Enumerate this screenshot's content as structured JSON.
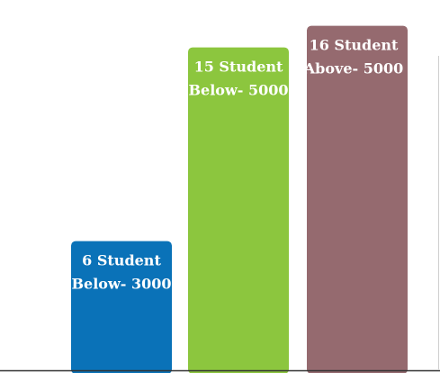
{
  "chart_data": {
    "type": "bar",
    "title": "",
    "xlabel": "",
    "ylabel": "",
    "ylim": [
      0,
      17.2
    ],
    "grid": false,
    "legend": "none",
    "categories": [
      "Below- 3000",
      "Below- 5000",
      "Above- 5000"
    ],
    "values": [
      6,
      15,
      16
    ],
    "labels": [
      [
        "6 Student",
        "Below- 3000"
      ],
      [
        "15 Student",
        "Below- 5000"
      ],
      [
        "16 Student",
        "Above- 5000"
      ]
    ],
    "colors": [
      "#0a72b8",
      "#8cc63e",
      "#956a6f"
    ],
    "label_color": "#ffffff",
    "axis_color": "#333333"
  }
}
